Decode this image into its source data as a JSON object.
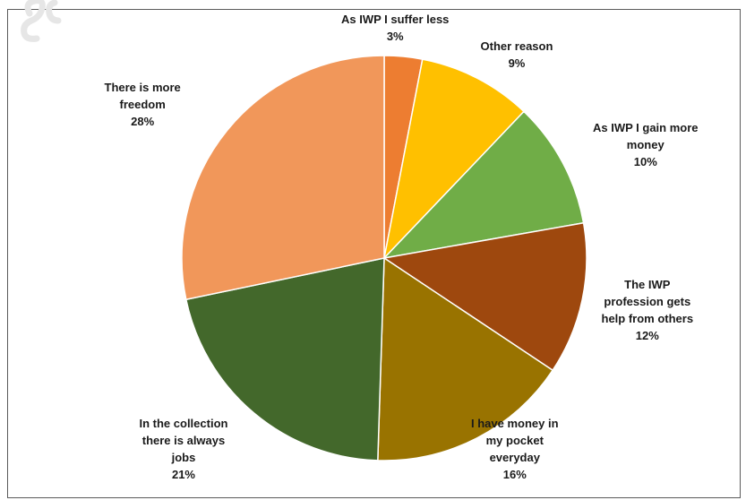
{
  "chart_data": {
    "type": "pie",
    "start_angle_deg": 0,
    "direction": "clockwise",
    "slices": [
      {
        "label": "As IWP I suffer less",
        "label_lines": [
          "As IWP I suffer less"
        ],
        "percent_text": "3%",
        "value": 3,
        "color": "#ED7D31"
      },
      {
        "label": "Other reason",
        "label_lines": [
          "Other reason"
        ],
        "percent_text": "9%",
        "value": 9,
        "color": "#FFC000"
      },
      {
        "label": "As IWP I gain more money",
        "label_lines": [
          "As IWP I gain more",
          "money"
        ],
        "percent_text": "10%",
        "value": 10,
        "color": "#70AD47"
      },
      {
        "label": "The IWP profession gets help from others",
        "label_lines": [
          "The IWP",
          "profession gets",
          "help from others"
        ],
        "percent_text": "12%",
        "value": 12,
        "color": "#9E480E"
      },
      {
        "label": "I have money in my pocket everyday",
        "label_lines": [
          "I have money in",
          "my pocket",
          "everyday"
        ],
        "percent_text": "16%",
        "value": 16,
        "color": "#997300"
      },
      {
        "label": "In the collection there is always jobs",
        "label_lines": [
          "In the collection",
          "there is always",
          "jobs"
        ],
        "percent_text": "21%",
        "value": 21,
        "color": "#43682B"
      },
      {
        "label": "There is more freedom",
        "label_lines": [
          "There is more",
          "freedom"
        ],
        "percent_text": "28%",
        "value": 28,
        "color": "#F1975A"
      }
    ]
  }
}
